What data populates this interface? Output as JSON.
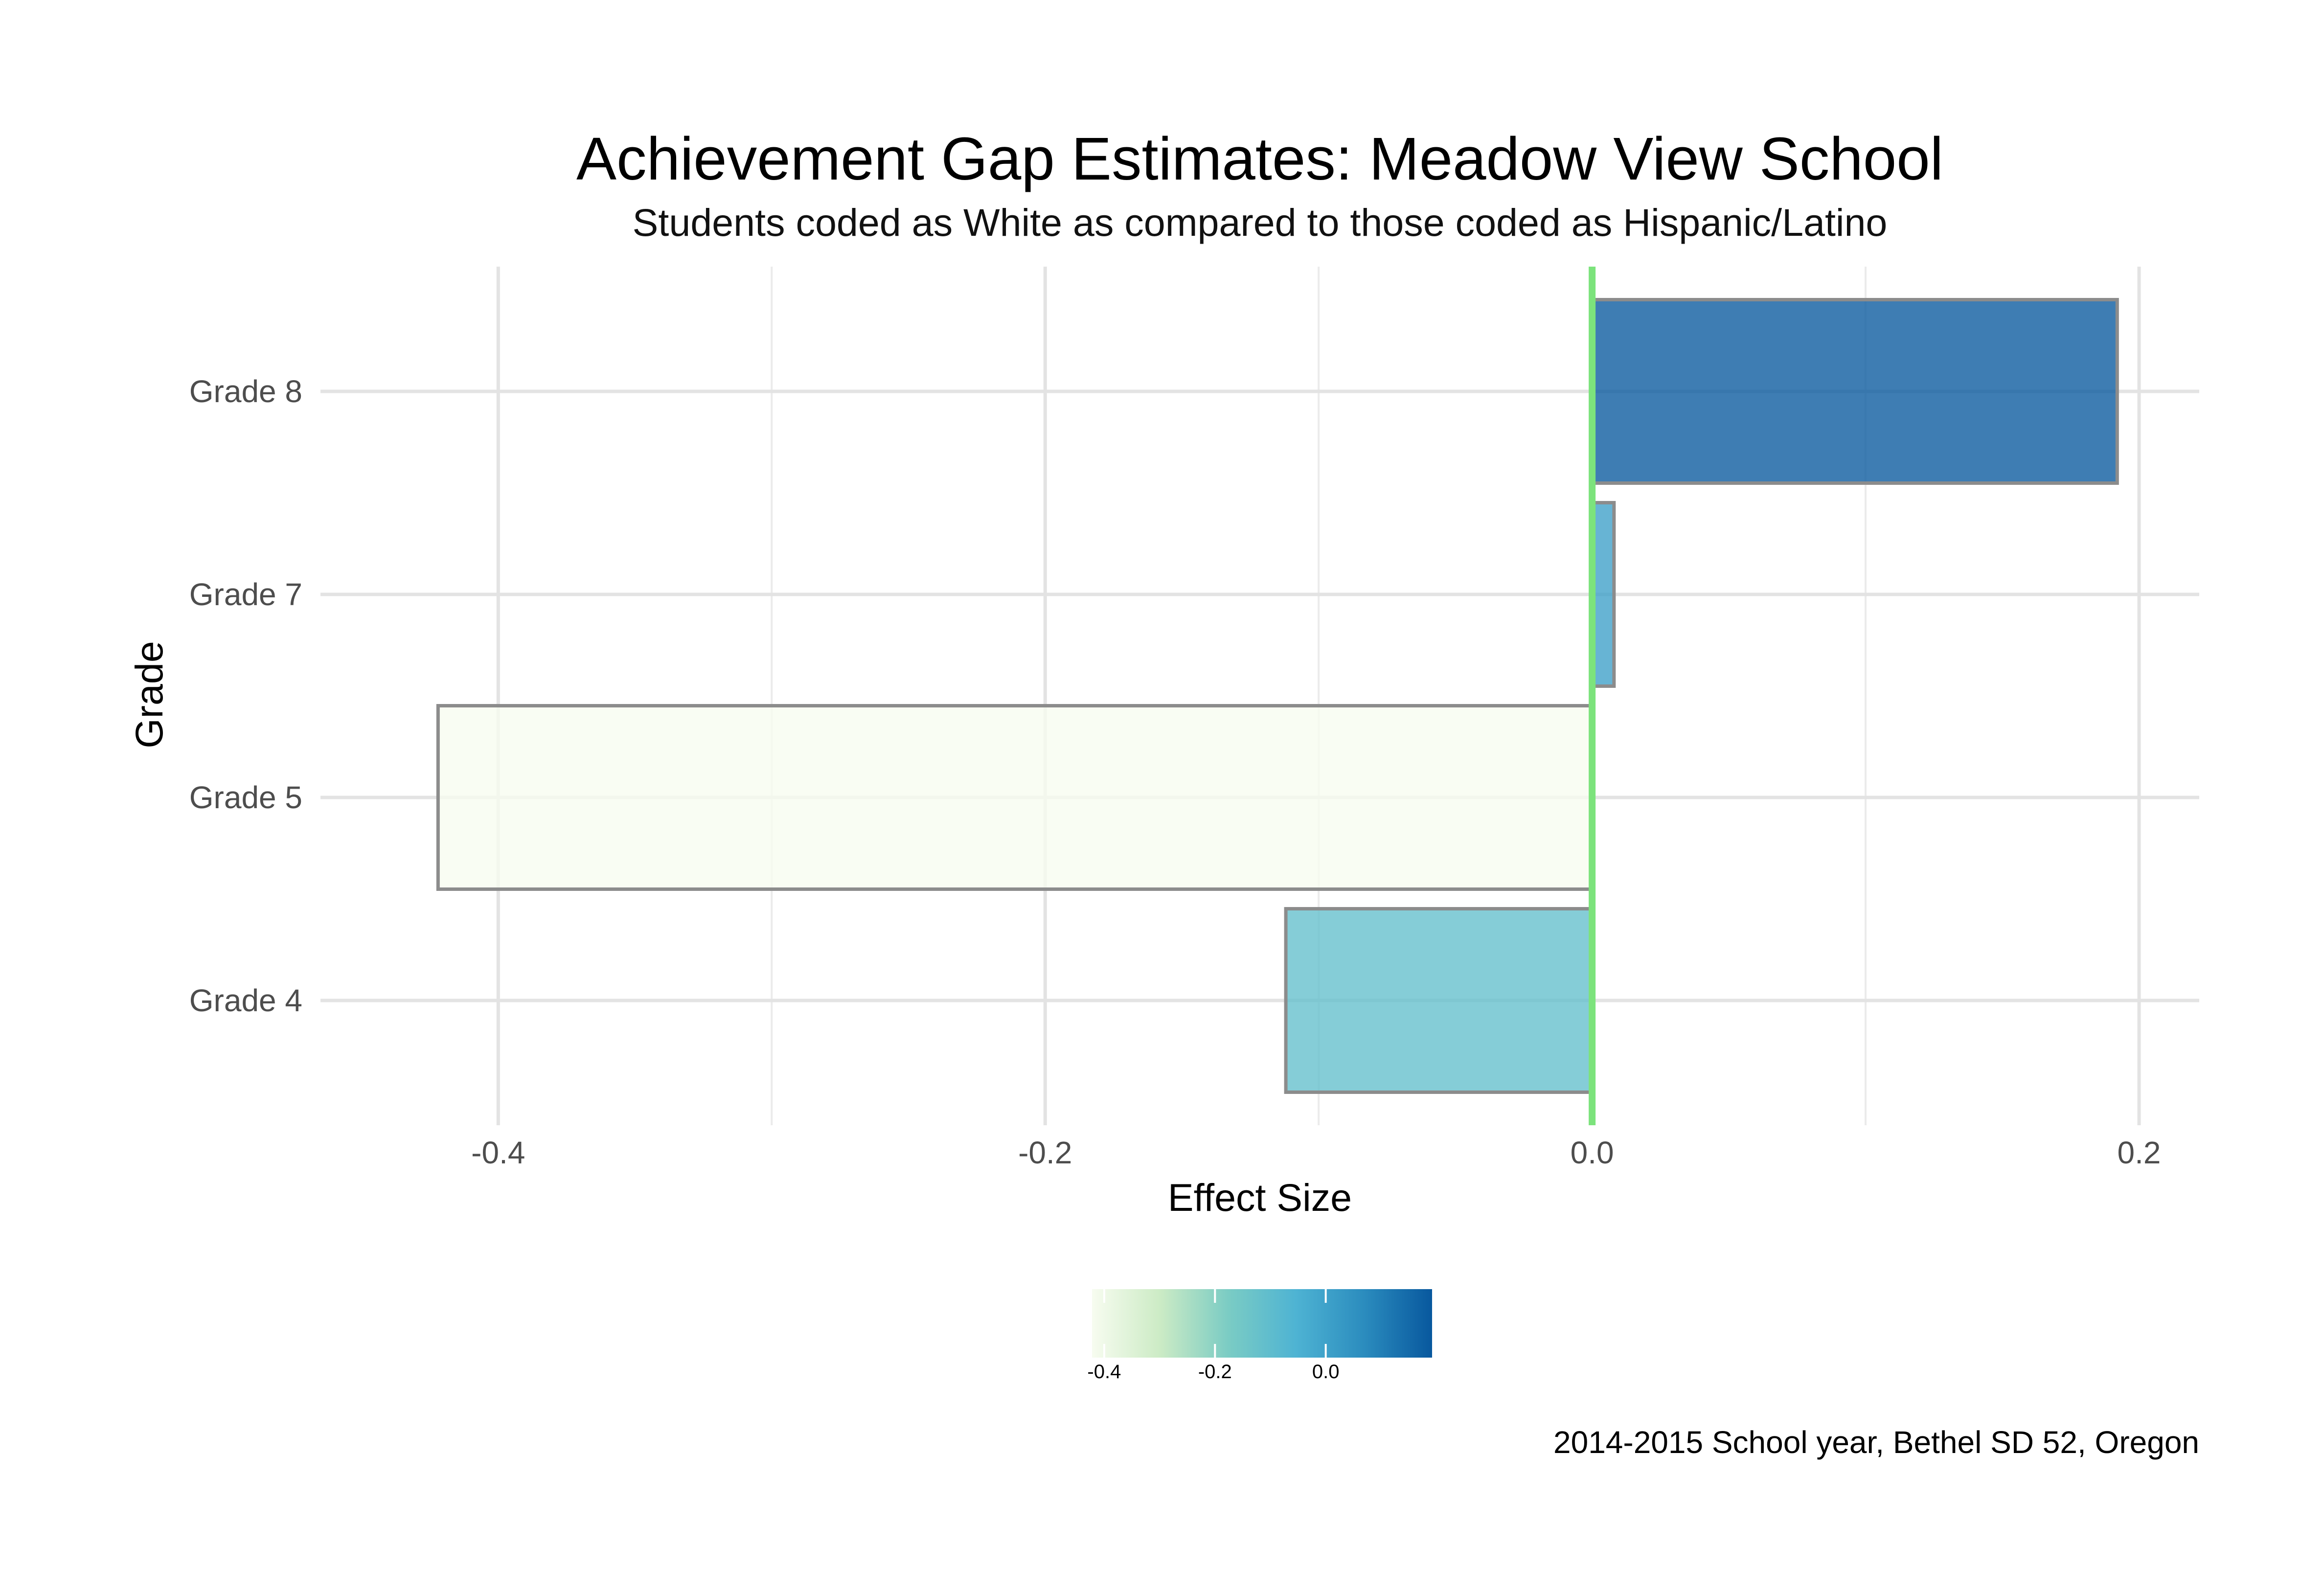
{
  "chart_data": {
    "type": "bar",
    "orientation": "horizontal",
    "title": "Achievement Gap Estimates: Meadow View School",
    "subtitle": "Students coded as White as compared to those coded as Hispanic/Latino",
    "xlabel": "Effect Size",
    "ylabel": "Grade",
    "caption": "2014-2015 School year, Bethel SD 52, Oregon",
    "categories": [
      "Grade 4",
      "Grade 5",
      "Grade 7",
      "Grade 8"
    ],
    "values": [
      -0.112,
      -0.422,
      0.008,
      0.192
    ],
    "xlim": [
      -0.465,
      0.222
    ],
    "x_ticks": [
      -0.4,
      -0.2,
      0.0,
      0.2
    ],
    "x_tick_labels": [
      "-0.4",
      "-0.2",
      "0.0",
      "0.2"
    ],
    "reference_line": {
      "x": 0,
      "color": "#7ce37c"
    },
    "grid": true,
    "legend": {
      "position": "bottom",
      "type": "colorbar",
      "min": -0.422,
      "max": 0.192,
      "ticks": [
        -0.4,
        -0.2,
        0.0
      ],
      "tick_labels": [
        "-0.4",
        "-0.2",
        "0.0"
      ],
      "colors": [
        "#f7fcf0",
        "#ccebc5",
        "#7bccc4",
        "#4eb3d3",
        "#2b8cbe",
        "#08589e"
      ]
    }
  }
}
